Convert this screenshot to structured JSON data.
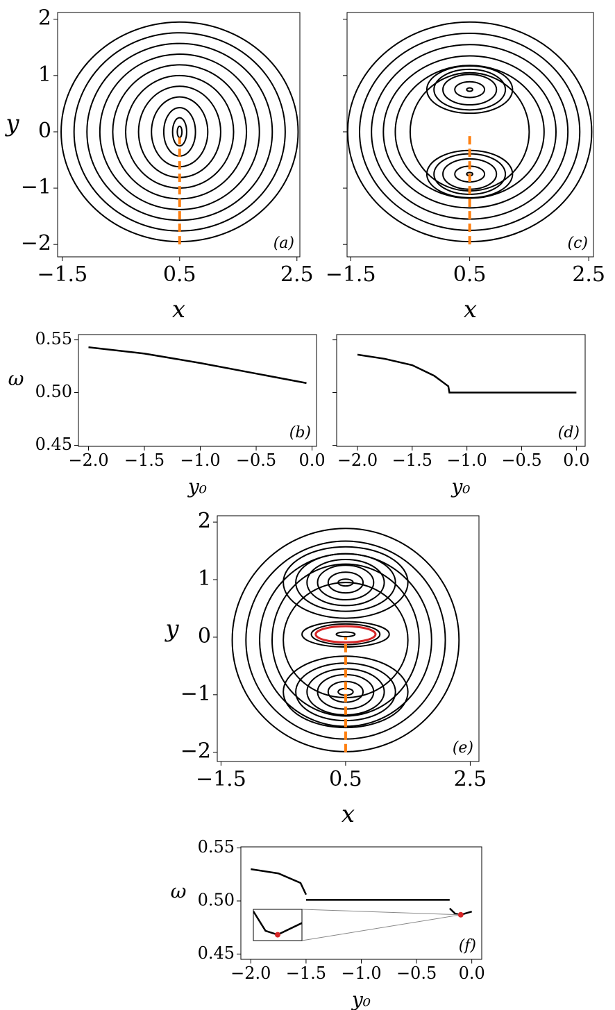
{
  "chart_data": [
    {
      "type": "phase",
      "label": "(a)",
      "x_label": "x",
      "y_label": "y",
      "xlim": [
        -1.58,
        2.55
      ],
      "ylim": [
        -2.22,
        2.12
      ],
      "xticks": [
        {
          "value": -1.5,
          "label": "−1.5"
        },
        0.5,
        2.5
      ],
      "yticks": [
        {
          "value": -2,
          "label": "−2"
        },
        {
          "value": -1,
          "label": "−1"
        },
        0,
        1,
        2
      ],
      "orbits": {
        "cx": [
          0.5,
          0.5,
          0.5,
          0.5,
          0.5,
          0.5,
          0.5,
          0.5,
          0.5,
          0.5,
          0.5
        ],
        "cy": [
          0,
          0,
          0,
          0,
          0,
          0,
          0,
          0,
          0,
          0,
          0
        ],
        "rx": [
          2.02,
          1.8,
          1.58,
          1.36,
          1.14,
          0.92,
          0.7,
          0.48,
          0.27,
          0.12,
          0.04
        ],
        "ry": [
          1.95,
          1.76,
          1.57,
          1.38,
          1.19,
          1.0,
          0.81,
          0.62,
          0.43,
          0.25,
          0.1
        ]
      },
      "initial_line": {
        "x": [
          0.5,
          0.5
        ],
        "y": [
          -2,
          -0.1
        ],
        "color": "#ff7f0e"
      }
    },
    {
      "type": "line",
      "label": "(b)",
      "x_label": "y₀",
      "y_label": "ω",
      "xlim": [
        -2.09,
        0.04
      ],
      "ylim": [
        0.449,
        0.555
      ],
      "xticks": [
        {
          "value": -2,
          "label": "−2.0"
        },
        {
          "value": -1.5,
          "label": "−1.5"
        },
        {
          "value": -1,
          "label": "−1.0"
        },
        {
          "value": -0.5,
          "label": "−0.5"
        },
        {
          "value": 0,
          "label": "0.0"
        }
      ],
      "yticks": [
        0.45,
        {
          "value": 0.5,
          "label": "0.50"
        },
        0.55
      ],
      "x": [
        -2,
        -1.5,
        -1,
        -0.5,
        -0.05
      ],
      "values": [
        0.543,
        0.537,
        0.528,
        0.518,
        0.509
      ],
      "color": "#000000"
    },
    {
      "type": "phase",
      "label": "(c)",
      "x_label": "x",
      "xlim": [
        -1.56,
        2.58
      ],
      "ylim": [
        -2.22,
        2.12
      ],
      "xticks": [
        {
          "value": -1.5,
          "label": "−1.5"
        },
        0.5,
        2.5
      ],
      "yticks": [
        {
          "value": -2,
          "label": "−2"
        },
        {
          "value": -1,
          "label": "−1"
        },
        0,
        1,
        2
      ],
      "ytick_labels": false,
      "orbits": {
        "cx": [
          0.5,
          0.5,
          0.5,
          0.5,
          0.5,
          0.5,
          0.5,
          0.5,
          0.5,
          0.5,
          0.5,
          0.5,
          0.5,
          0.5,
          0.5,
          0.5
        ],
        "cy": [
          0,
          0,
          0,
          0,
          0,
          0,
          0.75,
          0.75,
          0.75,
          0.75,
          0.75,
          -0.75,
          -0.75,
          -0.75,
          -0.75,
          -0.75
        ],
        "rx": [
          2.05,
          1.85,
          1.65,
          1.45,
          1.25,
          1.0,
          0.72,
          0.6,
          0.45,
          0.25,
          0.05,
          0.72,
          0.6,
          0.45,
          0.25,
          0.05
        ],
        "ry": [
          1.95,
          1.75,
          1.55,
          1.35,
          1.18,
          1.05,
          0.42,
          0.36,
          0.27,
          0.14,
          0.03,
          0.42,
          0.36,
          0.27,
          0.14,
          0.03
        ]
      },
      "initial_line": {
        "x": [
          0.5,
          0.5
        ],
        "y": [
          -2,
          0
        ],
        "color": "#ff7f0e"
      }
    },
    {
      "type": "line",
      "label": "(d)",
      "x_label": "y₀",
      "xlim": [
        -2.19,
        0.08
      ],
      "ylim": [
        0.449,
        0.555
      ],
      "xticks": [
        {
          "value": -2,
          "label": "−2.0"
        },
        {
          "value": -1.5,
          "label": "−1.5"
        },
        {
          "value": -1,
          "label": "−1.0"
        },
        {
          "value": -0.5,
          "label": "−0.5"
        },
        {
          "value": 0,
          "label": "0.0"
        }
      ],
      "yticks": [
        0.45,
        {
          "value": 0.5,
          "label": "0.50"
        },
        0.55
      ],
      "ytick_labels": false,
      "x": [
        -2,
        -1.75,
        -1.5,
        -1.3,
        -1.17,
        -1.16,
        0
      ],
      "values": [
        0.536,
        0.532,
        0.526,
        0.516,
        0.506,
        0.5,
        0.5
      ],
      "color": "#000000"
    },
    {
      "type": "phase",
      "label": "(e)",
      "x_label": "x",
      "y_label": "y",
      "xlim": [
        -1.56,
        2.64
      ],
      "ylim": [
        -2.16,
        2.11
      ],
      "xticks": [
        {
          "value": -1.5,
          "label": "−1.5"
        },
        0.5,
        2.5
      ],
      "yticks": [
        {
          "value": -2,
          "label": "−2"
        },
        {
          "value": -1,
          "label": "−1"
        },
        0,
        1,
        2
      ],
      "orbits": {
        "cx": [
          0.5,
          0.5,
          0.5,
          0.5,
          0.5,
          0.5,
          0.5,
          0.5,
          0.5,
          0.5,
          0.5,
          0.5,
          0.5,
          0.5,
          0.5,
          0.5,
          0.5,
          0.5,
          0.5,
          0.5
        ],
        "cy": [
          -0.05,
          -0.05,
          -0.05,
          -0.05,
          -0.05,
          0.95,
          0.95,
          0.95,
          0.95,
          0.95,
          0.95,
          -0.95,
          -0.95,
          -0.95,
          -0.95,
          -0.95,
          -0.95,
          0.05,
          0.05,
          0.05
        ],
        "rx": [
          1.82,
          1.6,
          1.38,
          1.18,
          1.0,
          1.0,
          0.8,
          0.62,
          0.45,
          0.28,
          0.12,
          1.0,
          0.8,
          0.62,
          0.45,
          0.28,
          0.12,
          0.7,
          0.55,
          0.15
        ],
        "ry": [
          1.94,
          1.72,
          1.5,
          1.32,
          1.0,
          0.62,
          0.5,
          0.4,
          0.3,
          0.18,
          0.06,
          0.62,
          0.5,
          0.4,
          0.3,
          0.18,
          0.06,
          0.22,
          0.18,
          0.04
        ]
      },
      "highlighted_orbit": {
        "cx": 0.5,
        "cy": 0.05,
        "rx": 0.48,
        "ry": 0.14,
        "color": "#d62728"
      },
      "initial_line": {
        "x": [
          0.5,
          0.5
        ],
        "y": [
          -2,
          0
        ],
        "color": "#ff7f0e"
      }
    },
    {
      "type": "line",
      "label": "(f)",
      "x_label": "y₀",
      "y_label": "ω",
      "xlim": [
        -2.09,
        0.09
      ],
      "ylim": [
        0.445,
        0.551
      ],
      "xticks": [
        {
          "value": -2,
          "label": "−2.0"
        },
        {
          "value": -1.5,
          "label": "−1.5"
        },
        {
          "value": -1,
          "label": "−1.0"
        },
        {
          "value": -0.5,
          "label": "−0.5"
        },
        {
          "value": 0,
          "label": "0.0"
        }
      ],
      "yticks": [
        0.45,
        {
          "value": 0.5,
          "label": "0.50"
        },
        0.55
      ],
      "x": [
        -2,
        -1.75,
        -1.55,
        -1.5,
        null,
        -1.5,
        -0.2,
        null,
        -0.2,
        -0.15,
        -0.1,
        0
      ],
      "values": [
        0.53,
        0.526,
        0.517,
        0.506,
        null,
        0.501,
        0.501,
        null,
        0.493,
        0.488,
        0.487,
        0.49
      ],
      "color": "#000000",
      "marker": {
        "x": -0.1,
        "y": 0.487,
        "color": "#d62728"
      },
      "inset": {
        "xlim": [
          -0.2,
          0.0
        ],
        "ylim": [
          0.4855,
          0.4935
        ]
      }
    }
  ]
}
